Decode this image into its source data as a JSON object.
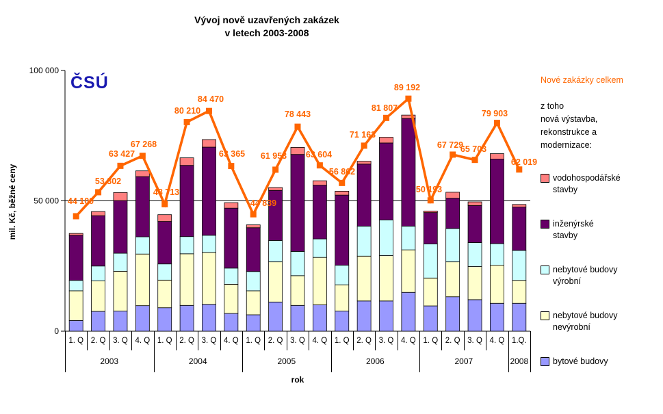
{
  "title": {
    "line1": "Vývoj nově uzavřených zakázek",
    "line2": "v letech 2003-2008"
  },
  "logo": {
    "text": "ČSÚ",
    "color": "#1a1ab0"
  },
  "y_axis": {
    "title": "mil. Kč, běžné ceny",
    "tick_values": [
      0,
      50000,
      100000
    ],
    "tick_labels": [
      "0",
      "50 000",
      "100 000"
    ],
    "gridline_at": 50000
  },
  "x_axis": {
    "title": "rok"
  },
  "legend": {
    "header": "Nové zakázky celkem",
    "header_color": "#ff6600",
    "subtitle": "z toho\nnová výstavba,\nrekonstrukce a\nmodernizace:",
    "items": [
      {
        "label": "vodohospodářské\nstavby",
        "color": "#ff8080"
      },
      {
        "label": "inženýrské\nstavby",
        "color": "#660066"
      },
      {
        "label": "nebytové budovy\nvýrobní",
        "color": "#ccffff"
      },
      {
        "label": "nebytové budovy\nnevýrobní",
        "color": "#ffffcc"
      },
      {
        "label": "bytové budovy",
        "color": "#9999ff"
      }
    ]
  },
  "chart_data": {
    "type": "bar",
    "subtype": "stacked-bars-with-line-overlay",
    "ylim": [
      0,
      100000
    ],
    "ylabel": "mil. Kč, běžné ceny",
    "xlabel": "rok",
    "grid": "horizontal line at 50 000 only",
    "quarters": [
      "1. Q",
      "2. Q",
      "3. Q",
      "4. Q",
      "1. Q",
      "2. Q",
      "3. Q",
      "4. Q",
      "1. Q",
      "2. Q",
      "3. Q",
      "4. Q",
      "1. Q",
      "2. Q",
      "3. Q",
      "4. Q",
      "1. Q",
      "2. Q",
      "3. Q",
      "4. Q",
      "1.Q."
    ],
    "year_groups": [
      {
        "label": "2003",
        "count": 4
      },
      {
        "label": "2004",
        "count": 4
      },
      {
        "label": "2005",
        "count": 4
      },
      {
        "label": "2006",
        "count": 4
      },
      {
        "label": "2007",
        "count": 4
      },
      {
        "label": "2008",
        "count": 1
      }
    ],
    "series": [
      {
        "name": "bytové budovy",
        "color": "#9999ff",
        "values": [
          4100,
          7600,
          7700,
          9800,
          9000,
          9900,
          10300,
          6800,
          6300,
          11200,
          9900,
          10100,
          7700,
          11600,
          11600,
          14900,
          9700,
          13200,
          12100,
          10700,
          10700
        ]
      },
      {
        "name": "nebytové budovy nevýrobní",
        "color": "#ffffcc",
        "values": [
          11400,
          11700,
          15300,
          19800,
          10600,
          19800,
          19900,
          11200,
          9200,
          15400,
          11400,
          18200,
          10100,
          17200,
          17400,
          16300,
          10700,
          13400,
          12700,
          14600,
          8800
        ]
      },
      {
        "name": "nebytové budovy výrobní",
        "color": "#ccffff",
        "values": [
          4000,
          5700,
          6900,
          6600,
          6200,
          6600,
          6600,
          6200,
          7400,
          8200,
          9300,
          7100,
          7500,
          11500,
          13700,
          9100,
          13100,
          12800,
          9200,
          8300,
          11500
        ]
      },
      {
        "name": "inženýrské stavby",
        "color": "#660066",
        "values": [
          17300,
          19300,
          20200,
          23100,
          16300,
          27300,
          33800,
          23000,
          16800,
          19200,
          37200,
          20600,
          26900,
          23800,
          29500,
          41300,
          12000,
          11600,
          14200,
          32400,
          16600
        ]
      },
      {
        "name": "vodohospodářské stavby",
        "color": "#ff8080",
        "values": [
          700,
          1600,
          3100,
          2200,
          2600,
          2900,
          2900,
          2100,
          1100,
          1100,
          2700,
          1700,
          1500,
          1100,
          2200,
          1300,
          600,
          2300,
          1400,
          2100,
          1000
        ]
      }
    ],
    "line": {
      "name": "Nové zakázky celkem",
      "color": "#ff6600",
      "values": [
        44100,
        53302,
        63427,
        67268,
        48713,
        80210,
        84470,
        63365,
        44839,
        61953,
        78443,
        63604,
        56862,
        71163,
        81807,
        89192,
        50193,
        67729,
        65703,
        79903,
        62019
      ],
      "labels": [
        "44 100",
        "53 302",
        "63 427",
        "67 268",
        "48 713",
        "80 210",
        "84 470",
        "63 365",
        "44 839",
        "61 953",
        "78 443",
        "63 604",
        "56 862",
        "71 163",
        "81 807",
        "89 192",
        "50 193",
        "67 729",
        "65 703",
        "79 903",
        "62 019"
      ]
    }
  }
}
